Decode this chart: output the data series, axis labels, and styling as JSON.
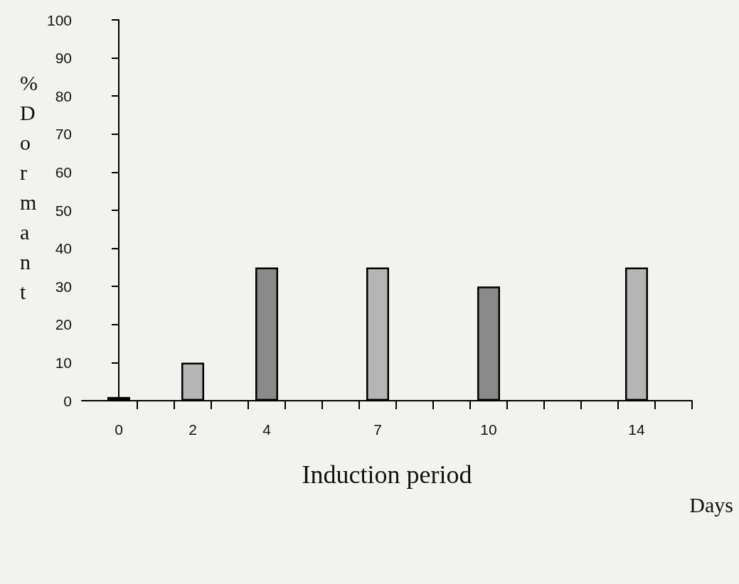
{
  "chart_data": {
    "type": "bar",
    "xlabel": "Induction period",
    "ylabel": "% Dormant",
    "annotations": [
      "Days"
    ],
    "x": [
      0,
      2,
      4,
      7,
      10,
      14
    ],
    "values": [
      1,
      10,
      35,
      35,
      30,
      35
    ],
    "colors": [
      "#1a1a1a",
      "#b5b5b5",
      "#8a8a8a",
      "#b5b5b5",
      "#8a8a8a",
      "#b5b5b5"
    ],
    "xlim": [
      -1,
      15.5
    ],
    "xticks": [
      0,
      2,
      4,
      7,
      10,
      14,
      {
        "value": 0.5,
        "label": null
      },
      {
        "value": 1.5,
        "label": null
      },
      {
        "value": 2.5,
        "label": null
      },
      {
        "value": 3.5,
        "label": null
      },
      {
        "value": 4.5,
        "label": null
      },
      {
        "value": 5.5,
        "label": null
      },
      {
        "value": 6.5,
        "label": null
      },
      {
        "value": 7.5,
        "label": null
      },
      {
        "value": 8.5,
        "label": null
      },
      {
        "value": 9.5,
        "label": null
      },
      {
        "value": 10.5,
        "label": null
      },
      {
        "value": 11.5,
        "label": null
      },
      {
        "value": 12.5,
        "label": null
      },
      {
        "value": 13.5,
        "label": null
      },
      {
        "value": 14.5,
        "label": null
      },
      {
        "value": 15.5,
        "label": null
      }
    ],
    "ylim": [
      0,
      100
    ],
    "yticks": [
      0,
      10,
      20,
      30,
      40,
      50,
      60,
      70,
      80,
      90,
      100
    ]
  }
}
